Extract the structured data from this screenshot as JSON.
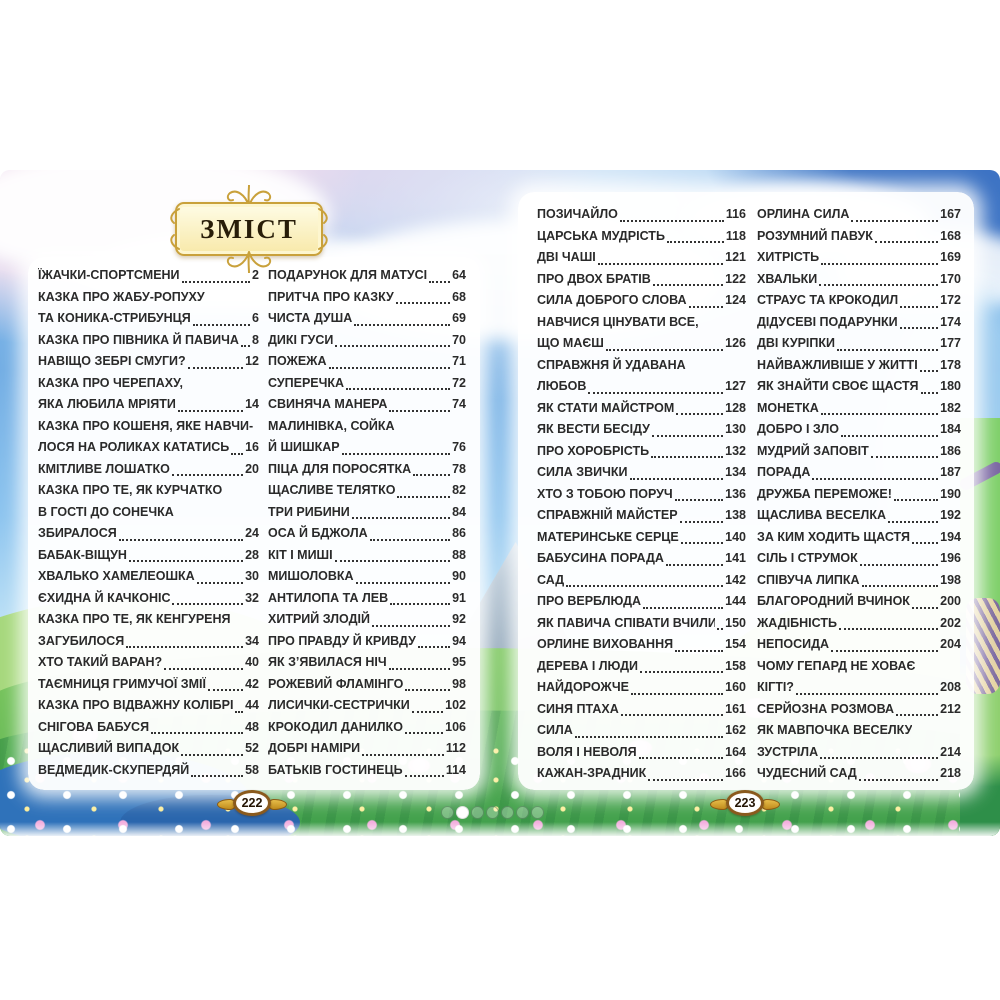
{
  "book": {
    "toc_title": "ЗМІСТ",
    "left_page_number": "222",
    "right_page_number": "223"
  },
  "pagination": {
    "count": 7,
    "active_index": 1
  },
  "colors": {
    "banner_gold": "#c9a13b",
    "banner_cream": "#fdf6c8",
    "badge_border_brown": "#8a5a1d",
    "badge_wing_gold": "#d7a52c",
    "toc_text": "#2a2a2a",
    "sky_blue": "#73aee4",
    "meadow_green": "#58b251"
  },
  "icons": {
    "banner_flourish": "gold-scroll-flourish",
    "badge_wings": "gold-leaf-wings",
    "pagination_dot": "carousel-dot"
  },
  "toc_columns": [
    {
      "entries": [
        {
          "lines": [
            "ЇЖАЧКИ-СПОРТСМЕНИ"
          ],
          "page": "2"
        },
        {
          "lines": [
            "КАЗКА ПРО ЖАБУ-РОПУХУ",
            "ТА КОНИКА-СТРИБУНЦЯ"
          ],
          "page": "6"
        },
        {
          "lines": [
            "КАЗКА ПРО ПІВНИКА Й ПАВИЧА"
          ],
          "page": "8"
        },
        {
          "lines": [
            "НАВІЩО ЗЕБРІ СМУГИ?"
          ],
          "page": "12"
        },
        {
          "lines": [
            "КАЗКА ПРО ЧЕРЕПАХУ,",
            "ЯКА ЛЮБИЛА МРІЯТИ"
          ],
          "page": "14"
        },
        {
          "lines": [
            "КАЗКА ПРО КОШЕНЯ, ЯКЕ НАВЧИ-",
            "ЛОСЯ НА РОЛИКАХ КАТАТИСЬ"
          ],
          "page": "16"
        },
        {
          "lines": [
            "КМІТЛИВЕ ЛОШАТКО"
          ],
          "page": "20"
        },
        {
          "lines": [
            "КАЗКА ПРО ТЕ, ЯК КУРЧАТКО",
            "В ГОСТІ ДО СОНЕЧКА",
            "ЗБИРАЛОСЯ"
          ],
          "page": "24"
        },
        {
          "lines": [
            "БАБАК-ВІЩУН"
          ],
          "page": "28"
        },
        {
          "lines": [
            "ХВАЛЬКО ХАМЕЛЕОШКА"
          ],
          "page": "30"
        },
        {
          "lines": [
            "ЄХИДНА Й КАЧКОНІС"
          ],
          "page": "32"
        },
        {
          "lines": [
            "КАЗКА ПРО ТЕ, ЯК КЕНГУРЕНЯ",
            "ЗАГУБИЛОСЯ"
          ],
          "page": "34"
        },
        {
          "lines": [
            "ХТО ТАКИЙ ВАРАН?"
          ],
          "page": "40"
        },
        {
          "lines": [
            "ТАЄМНИЦЯ ГРИМУЧОЇ ЗМІЇ"
          ],
          "page": "42"
        },
        {
          "lines": [
            "КАЗКА ПРО ВІДВАЖНУ КОЛІБРІ"
          ],
          "page": "44"
        },
        {
          "lines": [
            "СНІГОВА БАБУСЯ"
          ],
          "page": "48"
        },
        {
          "lines": [
            "ЩАСЛИВИЙ ВИПАДОК"
          ],
          "page": "52"
        },
        {
          "lines": [
            "ВЕДМЕДИК-СКУПЕРДЯЙ"
          ],
          "page": "58"
        }
      ]
    },
    {
      "entries": [
        {
          "lines": [
            "ПОДАРУНОК ДЛЯ МАТУСІ"
          ],
          "page": "64"
        },
        {
          "lines": [
            "ПРИТЧА ПРО КАЗКУ"
          ],
          "page": "68"
        },
        {
          "lines": [
            "ЧИСТА ДУША"
          ],
          "page": "69"
        },
        {
          "lines": [
            "ДИКІ ГУСИ"
          ],
          "page": "70"
        },
        {
          "lines": [
            "ПОЖЕЖА"
          ],
          "page": "71"
        },
        {
          "lines": [
            "СУПЕРЕЧКА"
          ],
          "page": "72"
        },
        {
          "lines": [
            "СВИНЯЧА МАНЕРА"
          ],
          "page": "74"
        },
        {
          "lines": [
            "МАЛИНІВКА, СОЙКА",
            "Й ШИШКАР"
          ],
          "page": "76"
        },
        {
          "lines": [
            "ПІЦА ДЛЯ ПОРОСЯТКА"
          ],
          "page": "78"
        },
        {
          "lines": [
            "ЩАСЛИВЕ ТЕЛЯТКО"
          ],
          "page": "82"
        },
        {
          "lines": [
            "ТРИ РИБИНИ"
          ],
          "page": "84"
        },
        {
          "lines": [
            "ОСА Й БДЖОЛА"
          ],
          "page": "86"
        },
        {
          "lines": [
            "КІТ І МИШІ"
          ],
          "page": "88"
        },
        {
          "lines": [
            "МИШОЛОВКА"
          ],
          "page": "90"
        },
        {
          "lines": [
            "АНТИЛОПА ТА ЛЕВ"
          ],
          "page": "91"
        },
        {
          "lines": [
            "ХИТРИЙ ЗЛОДІЙ"
          ],
          "page": "92"
        },
        {
          "lines": [
            "ПРО ПРАВДУ Й КРИВДУ"
          ],
          "page": "94"
        },
        {
          "lines": [
            "ЯК З’ЯВИЛАСЯ НІЧ"
          ],
          "page": "95"
        },
        {
          "lines": [
            "РОЖЕВИЙ ФЛАМІНГО"
          ],
          "page": "98"
        },
        {
          "lines": [
            "ЛИСИЧКИ-СЕСТРИЧКИ"
          ],
          "page": "102"
        },
        {
          "lines": [
            "КРОКОДИЛ ДАНИЛКО"
          ],
          "page": "106"
        },
        {
          "lines": [
            "ДОБРІ НАМІРИ"
          ],
          "page": "112"
        },
        {
          "lines": [
            "БАТЬКІВ ГОСТИНЕЦЬ"
          ],
          "page": "114"
        }
      ]
    },
    {
      "entries": [
        {
          "lines": [
            "ПОЗИЧАЙЛО"
          ],
          "page": "116"
        },
        {
          "lines": [
            "ЦАРСЬКА МУДРІСТЬ"
          ],
          "page": "118"
        },
        {
          "lines": [
            "ДВІ ЧАШІ"
          ],
          "page": "121"
        },
        {
          "lines": [
            "ПРО ДВОХ БРАТІВ"
          ],
          "page": "122"
        },
        {
          "lines": [
            "СИЛА ДОБРОГО СЛОВА"
          ],
          "page": "124"
        },
        {
          "lines": [
            "НАВЧИСЯ ЦІНУВАТИ ВСЕ,",
            "ЩО МАЄШ"
          ],
          "page": "126"
        },
        {
          "lines": [
            "СПРАВЖНЯ Й УДАВАНА",
            "ЛЮБОВ"
          ],
          "page": "127"
        },
        {
          "lines": [
            "ЯК СТАТИ МАЙСТРОМ"
          ],
          "page": "128"
        },
        {
          "lines": [
            "ЯК ВЕСТИ БЕСІДУ"
          ],
          "page": "130"
        },
        {
          "lines": [
            "ПРО ХОРОБРІСТЬ"
          ],
          "page": "132"
        },
        {
          "lines": [
            "СИЛА ЗВИЧКИ"
          ],
          "page": "134"
        },
        {
          "lines": [
            "ХТО З ТОБОЮ ПОРУЧ"
          ],
          "page": "136"
        },
        {
          "lines": [
            "СПРАВЖНІЙ МАЙСТЕР"
          ],
          "page": "138"
        },
        {
          "lines": [
            "МАТЕРИНСЬКЕ СЕРЦЕ"
          ],
          "page": "140"
        },
        {
          "lines": [
            "БАБУСИНА ПОРАДА"
          ],
          "page": "141"
        },
        {
          "lines": [
            "САД"
          ],
          "page": "142"
        },
        {
          "lines": [
            "ПРО ВЕРБЛЮДА"
          ],
          "page": "144"
        },
        {
          "lines": [
            "ЯК ПАВИЧА СПІВАТИ ВЧИЛИ"
          ],
          "page": "150"
        },
        {
          "lines": [
            "ОРЛИНЕ ВИХОВАННЯ"
          ],
          "page": "154"
        },
        {
          "lines": [
            "ДЕРЕВА І ЛЮДИ"
          ],
          "page": "158"
        },
        {
          "lines": [
            "НАЙДОРОЖЧЕ"
          ],
          "page": "160"
        },
        {
          "lines": [
            "СИНЯ ПТАХА"
          ],
          "page": "161"
        },
        {
          "lines": [
            "СИЛА"
          ],
          "page": "162"
        },
        {
          "lines": [
            "ВОЛЯ І НЕВОЛЯ"
          ],
          "page": "164"
        },
        {
          "lines": [
            "КАЖАН-ЗРАДНИК"
          ],
          "page": "166"
        }
      ]
    },
    {
      "entries": [
        {
          "lines": [
            "ОРЛИНА СИЛА"
          ],
          "page": "167"
        },
        {
          "lines": [
            "РОЗУМНИЙ ПАВУК"
          ],
          "page": "168"
        },
        {
          "lines": [
            "ХИТРІСТЬ"
          ],
          "page": "169"
        },
        {
          "lines": [
            "ХВАЛЬКИ"
          ],
          "page": "170"
        },
        {
          "lines": [
            "СТРАУС ТА КРОКОДИЛ"
          ],
          "page": "172"
        },
        {
          "lines": [
            "ДІДУСЕВІ ПОДАРУНКИ"
          ],
          "page": "174"
        },
        {
          "lines": [
            "ДВІ КУРІПКИ"
          ],
          "page": "177"
        },
        {
          "lines": [
            "НАЙВАЖЛИВІШЕ У ЖИТТІ"
          ],
          "page": "178"
        },
        {
          "lines": [
            "ЯК ЗНАЙТИ СВОЄ ЩАСТЯ"
          ],
          "page": "180"
        },
        {
          "lines": [
            "МОНЕТКА"
          ],
          "page": "182"
        },
        {
          "lines": [
            "ДОБРО І ЗЛО"
          ],
          "page": "184"
        },
        {
          "lines": [
            "МУДРИЙ ЗАПОВІТ"
          ],
          "page": "186"
        },
        {
          "lines": [
            "ПОРАДА"
          ],
          "page": "187"
        },
        {
          "lines": [
            "ДРУЖБА ПЕРЕМОЖЕ!"
          ],
          "page": "190"
        },
        {
          "lines": [
            "ЩАСЛИВА ВЕСЕЛКА"
          ],
          "page": "192"
        },
        {
          "lines": [
            "ЗА КИМ ХОДИТЬ ЩАСТЯ"
          ],
          "page": "194"
        },
        {
          "lines": [
            "СІЛЬ І СТРУМОК"
          ],
          "page": "196"
        },
        {
          "lines": [
            "СПІВУЧА ЛИПКА"
          ],
          "page": "198"
        },
        {
          "lines": [
            "БЛАГОРОДНИЙ ВЧИНОК"
          ],
          "page": "200"
        },
        {
          "lines": [
            "ЖАДІБНІСТЬ"
          ],
          "page": "202"
        },
        {
          "lines": [
            "НЕПОСИДА"
          ],
          "page": "204"
        },
        {
          "lines": [
            "ЧОМУ ГЕПАРД НЕ ХОВАЄ",
            "КІГТІ?"
          ],
          "page": "208"
        },
        {
          "lines": [
            "СЕРЙОЗНА РОЗМОВА"
          ],
          "page": "212"
        },
        {
          "lines": [
            "ЯК МАВПОЧКА ВЕСЕЛКУ",
            "ЗУСТРІЛА"
          ],
          "page": "214"
        },
        {
          "lines": [
            "ЧУДЕСНИЙ САД"
          ],
          "page": "218"
        }
      ]
    }
  ]
}
